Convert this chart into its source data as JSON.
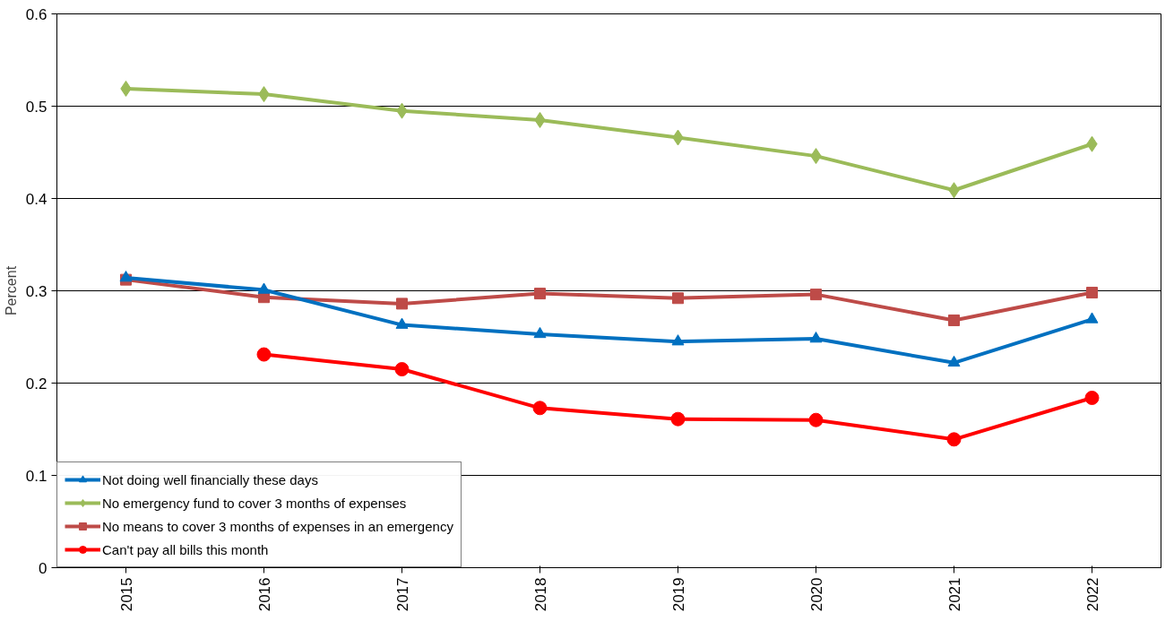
{
  "chart_data": {
    "type": "line",
    "ylabel": "Percent",
    "categories": [
      "2015",
      "2016",
      "2017",
      "2018",
      "2019",
      "2020",
      "2021",
      "2022"
    ],
    "ylim": [
      0,
      0.6
    ],
    "yticks": [
      0,
      0.1,
      0.2,
      0.3,
      0.4,
      0.5,
      0.6
    ],
    "grid": "y",
    "legend": "bottom left",
    "series": [
      {
        "name": "Not doing well financially these days",
        "color": "#0070c0",
        "marker": "triangle",
        "values": [
          0.314,
          0.301,
          0.263,
          0.253,
          0.245,
          0.248,
          0.222,
          0.269
        ]
      },
      {
        "name": "No emergency fund to cover 3 months of expenses",
        "color": "#9bbb59",
        "marker": "diamond",
        "values": [
          0.519,
          0.513,
          0.495,
          0.485,
          0.466,
          0.446,
          0.409,
          0.459
        ]
      },
      {
        "name": "No means to cover 3 months of expenses in an emergency",
        "color": "#be4b48",
        "marker": "square",
        "values": [
          0.312,
          0.293,
          0.286,
          0.297,
          0.292,
          0.296,
          0.268,
          0.298
        ]
      },
      {
        "name": "Can't pay all bills this month",
        "color": "#ff0000",
        "marker": "circle",
        "values": [
          null,
          0.231,
          0.215,
          0.173,
          0.161,
          0.16,
          0.139,
          0.184
        ]
      }
    ]
  }
}
